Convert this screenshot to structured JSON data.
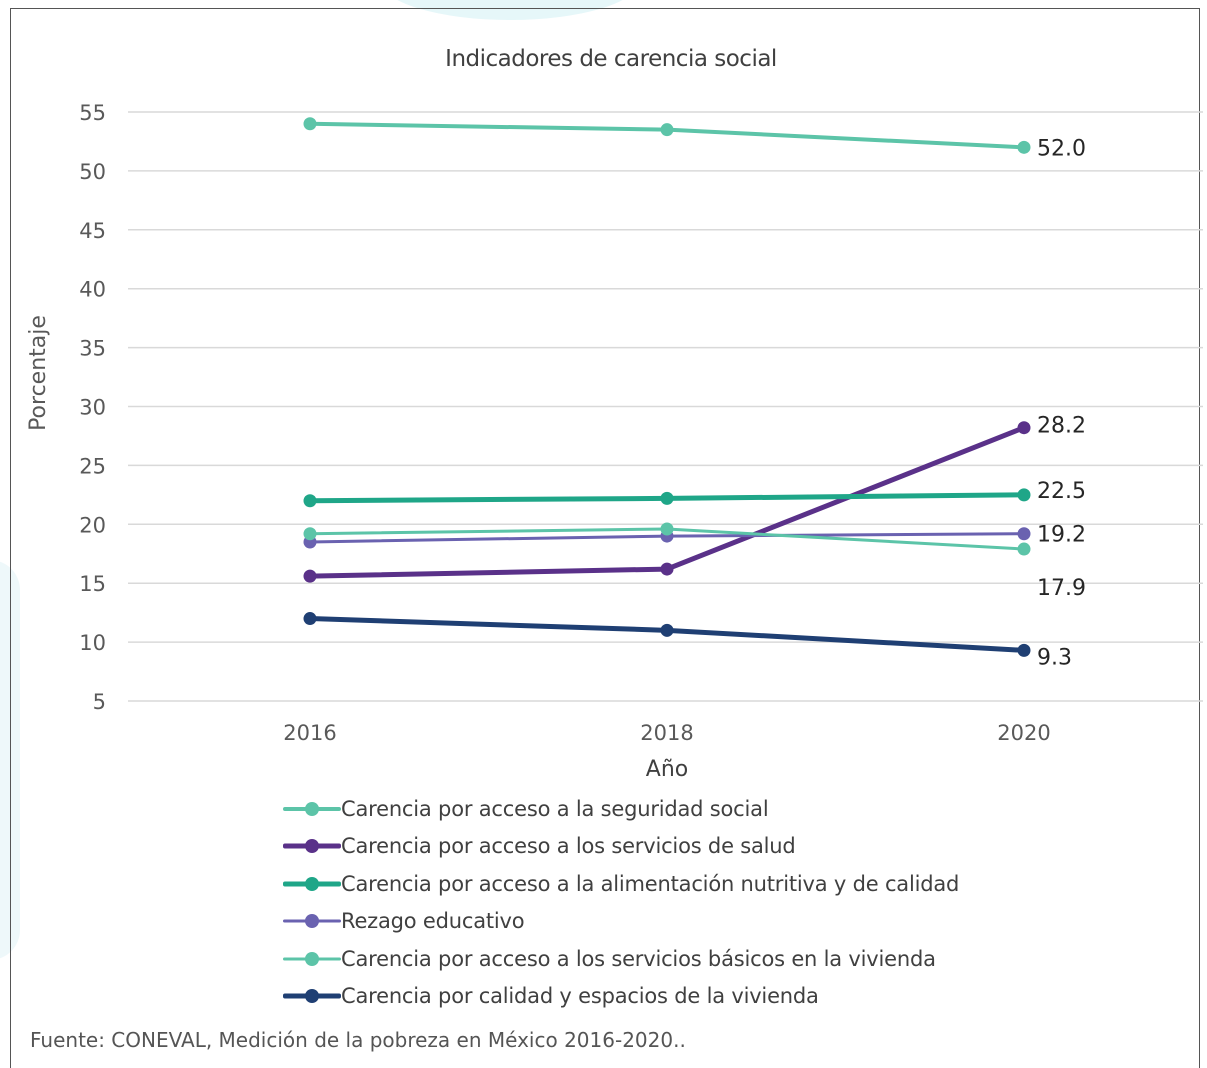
{
  "chart_data": {
    "type": "line",
    "title": "Indicadores de carencia social",
    "xlabel": "Año",
    "ylabel": "Porcentaje",
    "categories": [
      "2016",
      "2018",
      "2020"
    ],
    "ylim": [
      5,
      55
    ],
    "yticks": [
      "5",
      "10",
      "15",
      "20",
      "25",
      "30",
      "35",
      "40",
      "45",
      "50",
      "55"
    ],
    "grid": "horizontal",
    "legend_position": "bottom",
    "series": [
      {
        "name": "Carencia por acceso a la seguridad social",
        "values": [
          54.0,
          53.5,
          52.0
        ],
        "end_label": "52.0",
        "color": "#5cc4a8",
        "width": 4
      },
      {
        "name": "Carencia por acceso a los servicios de salud",
        "values": [
          15.6,
          16.2,
          28.2
        ],
        "end_label": "28.2",
        "color": "#5a3189",
        "width": 5
      },
      {
        "name": "Carencia por acceso a la alimentación nutritiva y de calidad",
        "values": [
          22.0,
          22.2,
          22.5
        ],
        "end_label": "22.5",
        "color": "#1fa688",
        "width": 5
      },
      {
        "name": "Rezago educativo",
        "values": [
          18.5,
          19.0,
          19.2
        ],
        "end_label": "19.2",
        "color": "#6a62b0",
        "width": 3
      },
      {
        "name": "Carencia por acceso a los servicios básicos en la vivienda",
        "values": [
          19.2,
          19.6,
          17.9
        ],
        "end_label": "17.9",
        "color": "#5cc4a8",
        "width": 3
      },
      {
        "name": "Carencia por calidad y espacios de la vivienda",
        "values": [
          12.0,
          11.0,
          9.3
        ],
        "end_label": "9.3",
        "color": "#1f3f73",
        "width": 5
      }
    ]
  },
  "source": "Fuente: CONEVAL, Medición de la pobreza en México 2016-2020.."
}
